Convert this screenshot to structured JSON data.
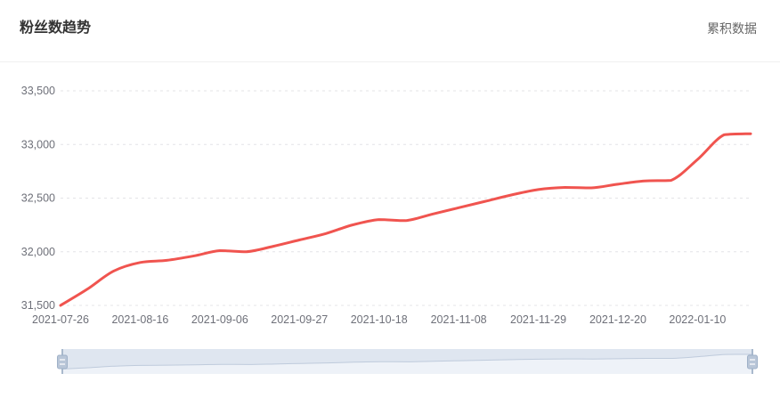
{
  "header": {
    "title": "粉丝数趋势",
    "mode_label": "累积数据"
  },
  "colors": {
    "line": "#f0544f",
    "grid": "#e4e4e7",
    "axis_text": "#6e7079",
    "title_text": "#333333",
    "mode_text": "#666666",
    "divider": "#f0f0f0",
    "slider_track": "#dfe6f0",
    "slider_below": "#eef2f8",
    "slider_line": "#bfcbdc",
    "handle_fill": "#b9c6d8",
    "handle_stroke": "#9fb1c8"
  },
  "chart_data": {
    "type": "line",
    "title": "粉丝数趋势",
    "smooth": true,
    "grid": true,
    "legend_position": "none",
    "x": [
      "2021-07-26",
      "2021-08-02",
      "2021-08-09",
      "2021-08-16",
      "2021-08-23",
      "2021-08-30",
      "2021-09-06",
      "2021-09-13",
      "2021-09-20",
      "2021-09-27",
      "2021-10-04",
      "2021-10-11",
      "2021-10-18",
      "2021-10-25",
      "2021-11-01",
      "2021-11-08",
      "2021-11-15",
      "2021-11-22",
      "2021-11-29",
      "2021-12-06",
      "2021-12-13",
      "2021-12-20",
      "2021-12-27",
      "2022-01-03",
      "2022-01-10",
      "2022-01-17",
      "2022-01-24"
    ],
    "values": [
      31500,
      31650,
      31820,
      31900,
      31920,
      31960,
      32010,
      32000,
      32050,
      32110,
      32170,
      32250,
      32300,
      32290,
      32350,
      32410,
      32470,
      32530,
      32580,
      32600,
      32595,
      32630,
      32660,
      32665,
      32860,
      33090,
      33100
    ],
    "x_tick_labels": [
      "2021-07-26",
      "2021-08-16",
      "2021-09-06",
      "2021-09-27",
      "2021-10-18",
      "2021-11-08",
      "2021-11-29",
      "2021-12-20",
      "2022-01-10"
    ],
    "x_tick_every": 3,
    "y_ticks": [
      31500,
      32000,
      32500,
      33000,
      33500
    ],
    "y_tick_labels": [
      "31,500",
      "32,000",
      "32,500",
      "33,000",
      "33,500"
    ],
    "ylim": [
      31500,
      33500
    ]
  }
}
